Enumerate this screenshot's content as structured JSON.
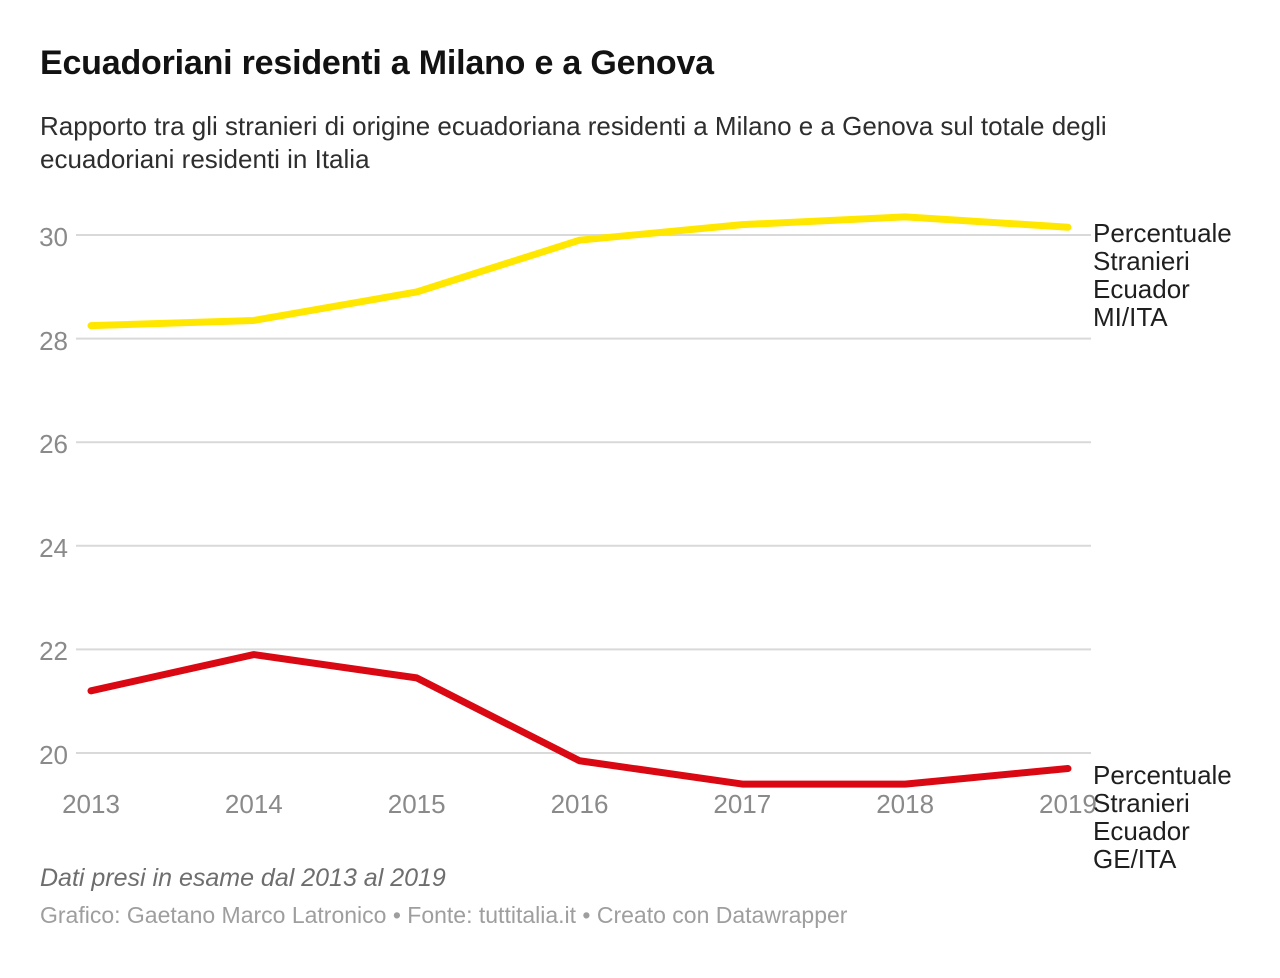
{
  "header": {
    "title": "Ecuadoriani residenti a Milano e a Genova",
    "subtitle": "Rapporto tra gli stranieri di origine ecuadoriana residenti a Milano e a Genova sul totale degli ecuadoriani residenti in Italia"
  },
  "chart_data": {
    "type": "line",
    "x": [
      "2013",
      "2014",
      "2015",
      "2016",
      "2017",
      "2018",
      "2019"
    ],
    "series": [
      {
        "name": "Percentuale Stranieri Ecuador MI/ITA",
        "label_lines": [
          "Percentuale",
          "Stranieri",
          "Ecuador",
          "MI/ITA"
        ],
        "color": "#ffe700",
        "values": [
          28.25,
          28.35,
          28.9,
          29.9,
          30.2,
          30.35,
          30.15
        ]
      },
      {
        "name": "Percentuale Stranieri Ecuador GE/ITA",
        "label_lines": [
          "Percentuale",
          "Stranieri",
          "Ecuador",
          "GE/ITA"
        ],
        "color": "#d90812",
        "values": [
          21.2,
          21.9,
          21.45,
          19.85,
          19.4,
          19.4,
          19.7
        ]
      }
    ],
    "y_ticks": [
      20,
      22,
      24,
      26,
      28,
      30
    ],
    "ylim": [
      19.2,
      30.8
    ],
    "xlabel": "",
    "ylabel": "",
    "grid": "horizontal",
    "grid_color": "#d9d9d9",
    "legend_position": "direct-labels-right"
  },
  "footer": {
    "note": "Dati presi in esame dal 2013 al 2019",
    "credit": "Grafico: Gaetano Marco Latronico • Fonte: tuttitalia.it • Creato con Datawrapper"
  }
}
